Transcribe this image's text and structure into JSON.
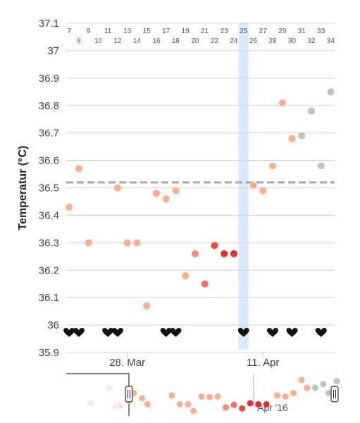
{
  "chart_data": {
    "type": "scatter",
    "ylabel": "Temperatur (°C)",
    "ylim": [
      35.9,
      37.1
    ],
    "yticks": [
      "35.9",
      "36",
      "36.1",
      "36.2",
      "36.3",
      "36.4",
      "36.5",
      "36.6",
      "36.7",
      "36.8",
      "36.9",
      "37",
      "37.1"
    ],
    "x_tick_labels": [
      {
        "label": "28. Mar",
        "day": 13
      },
      {
        "label": "11. Apr",
        "day": 27
      }
    ],
    "cycle_days": [
      "7",
      "8",
      "9",
      "10",
      "11",
      "12",
      "13",
      "14",
      "15",
      "16",
      "17",
      "18",
      "19",
      "20",
      "21",
      "22",
      "23",
      "24",
      "25",
      "26",
      "27",
      "28",
      "29",
      "30",
      "31",
      "32",
      "33",
      "34"
    ],
    "highlight_day": 25,
    "coverline": 36.52,
    "points": [
      {
        "day": 7,
        "y": 36.43,
        "color": "#fcae91"
      },
      {
        "day": 8,
        "y": 36.57,
        "color": "#fcae91"
      },
      {
        "day": 9,
        "y": 36.3,
        "color": "#fcae91"
      },
      {
        "day": 12,
        "y": 36.5,
        "color": "#fcae91"
      },
      {
        "day": 13,
        "y": 36.3,
        "color": "#fcae91"
      },
      {
        "day": 14,
        "y": 36.3,
        "color": "#fcae91"
      },
      {
        "day": 15,
        "y": 36.07,
        "color": "#fcae91"
      },
      {
        "day": 16,
        "y": 36.48,
        "color": "#fcae91"
      },
      {
        "day": 17,
        "y": 36.46,
        "color": "#fcae91"
      },
      {
        "day": 18,
        "y": 36.49,
        "color": "#fcae91"
      },
      {
        "day": 19,
        "y": 36.18,
        "color": "#fcae91"
      },
      {
        "day": 20,
        "y": 36.26,
        "color": "#fb8a7a"
      },
      {
        "day": 21,
        "y": 36.15,
        "color": "#fb6a5a"
      },
      {
        "day": 22,
        "y": 36.29,
        "color": "#e84a3f"
      },
      {
        "day": 23,
        "y": 36.26,
        "color": "#e03030"
      },
      {
        "day": 24,
        "y": 36.26,
        "color": "#e03030"
      },
      {
        "day": 26,
        "y": 36.51,
        "color": "#fcae91"
      },
      {
        "day": 27,
        "y": 36.49,
        "color": "#fcae91"
      },
      {
        "day": 28,
        "y": 36.58,
        "color": "#fcae91"
      },
      {
        "day": 29,
        "y": 36.81,
        "color": "#fcae91"
      },
      {
        "day": 30,
        "y": 36.68,
        "color": "#fcae91"
      },
      {
        "day": 31,
        "y": 36.69,
        "color": "#b8ccb0"
      },
      {
        "day": 32,
        "y": 36.78,
        "color": "#b8ccb0"
      },
      {
        "day": 33,
        "y": 36.58,
        "color": "#b8ccb0"
      },
      {
        "day": 34,
        "y": 36.85,
        "color": "#b8ccb0"
      }
    ],
    "hearts": [
      7,
      8,
      11,
      12,
      17,
      18,
      25,
      28,
      30,
      33
    ],
    "navigator_label": "Apr '16",
    "navigator_points": [
      {
        "pos": 0.09,
        "y": 36.05,
        "color": "#eeeeee"
      },
      {
        "pos": 0.16,
        "y": 36.35,
        "color": "#eeeeee"
      },
      {
        "pos": 0.18,
        "y": 35.98,
        "color": "#eeeeee"
      },
      {
        "pos": 0.2,
        "y": 36.0,
        "color": "#f4e4e0"
      },
      {
        "pos": 0.23,
        "y": 36.1,
        "color": "#fcae91"
      },
      {
        "pos": 0.25,
        "y": 36.25,
        "color": "#fcae91"
      },
      {
        "pos": 0.28,
        "y": 36.15,
        "color": "#fcae91"
      },
      {
        "pos": 0.3,
        "y": 36.03,
        "color": "#fcae91"
      },
      {
        "pos": 0.39,
        "y": 36.2,
        "color": "#fcae91"
      },
      {
        "pos": 0.42,
        "y": 36.03,
        "color": "#fcae91"
      },
      {
        "pos": 0.45,
        "y": 36.03,
        "color": "#fcae91"
      },
      {
        "pos": 0.47,
        "y": 35.9,
        "color": "#fcae91"
      },
      {
        "pos": 0.5,
        "y": 36.18,
        "color": "#fcae91"
      },
      {
        "pos": 0.53,
        "y": 36.17,
        "color": "#fcae91"
      },
      {
        "pos": 0.56,
        "y": 36.18,
        "color": "#fcae91"
      },
      {
        "pos": 0.59,
        "y": 35.97,
        "color": "#fb8a7a"
      },
      {
        "pos": 0.62,
        "y": 36.02,
        "color": "#fb6a5a"
      },
      {
        "pos": 0.65,
        "y": 35.95,
        "color": "#e84a3f"
      },
      {
        "pos": 0.68,
        "y": 36.05,
        "color": "#e03030"
      },
      {
        "pos": 0.71,
        "y": 36.03,
        "color": "#e03030"
      },
      {
        "pos": 0.74,
        "y": 36.03,
        "color": "#e03030"
      },
      {
        "pos": 0.78,
        "y": 36.2,
        "color": "#fcae91"
      },
      {
        "pos": 0.81,
        "y": 36.18,
        "color": "#fcae91"
      },
      {
        "pos": 0.84,
        "y": 36.25,
        "color": "#fcae91"
      },
      {
        "pos": 0.87,
        "y": 36.5,
        "color": "#fcae91"
      },
      {
        "pos": 0.89,
        "y": 36.35,
        "color": "#fcae91"
      },
      {
        "pos": 0.92,
        "y": 36.35,
        "color": "#b8ccb0"
      },
      {
        "pos": 0.95,
        "y": 36.42,
        "color": "#b8ccb0"
      },
      {
        "pos": 0.97,
        "y": 36.25,
        "color": "#b8ccb0"
      },
      {
        "pos": 1.0,
        "y": 36.48,
        "color": "#b8ccb0"
      }
    ]
  }
}
